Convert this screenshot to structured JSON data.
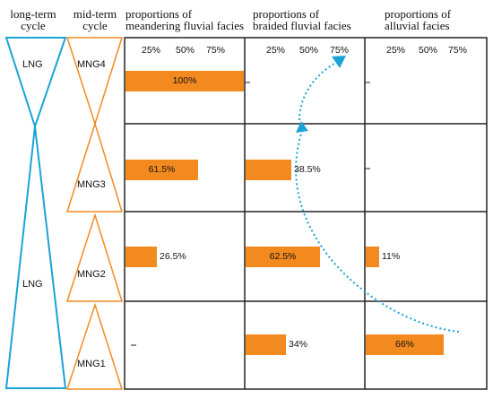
{
  "headers": {
    "long_term": [
      "long-term",
      "cycle"
    ],
    "mid_term": [
      "mid-term",
      "cycle"
    ],
    "meandering": [
      "proportions of",
      "meandering fluvial facies"
    ],
    "braided": [
      "proportions of",
      "braided fluvial facies"
    ],
    "alluvial": [
      "proportions of",
      "alluvial facies"
    ]
  },
  "tick_labels": [
    "25%",
    "50%",
    "75%"
  ],
  "long_term_cycles": [
    "LNG",
    "LNG"
  ],
  "mid_term_cycles": [
    "MNG4",
    "MNG3",
    "MNG2",
    "MNG1"
  ],
  "chart_data": {
    "type": "bar",
    "categories": [
      "MNG4",
      "MNG3",
      "MNG2",
      "MNG1"
    ],
    "xlim": [
      0,
      100
    ],
    "series": [
      {
        "name": "meandering fluvial facies",
        "values": [
          100,
          61.5,
          26.5,
          null
        ],
        "labels": [
          "100%",
          "61.5%",
          "26.5%",
          ""
        ]
      },
      {
        "name": "braided fluvial facies",
        "values": [
          null,
          38.5,
          62.5,
          34
        ],
        "labels": [
          "",
          "38.5%",
          "62.5%",
          "34%"
        ]
      },
      {
        "name": "alluvial facies",
        "values": [
          null,
          null,
          11,
          66
        ],
        "labels": [
          "",
          "",
          "11%",
          "66%"
        ]
      }
    ]
  },
  "colors": {
    "bar": "#f38a1f",
    "long_term": "#1ba3d6",
    "mid_term": "#f38a1f",
    "arrow": "#1ba3d6",
    "frame": "#222222"
  }
}
